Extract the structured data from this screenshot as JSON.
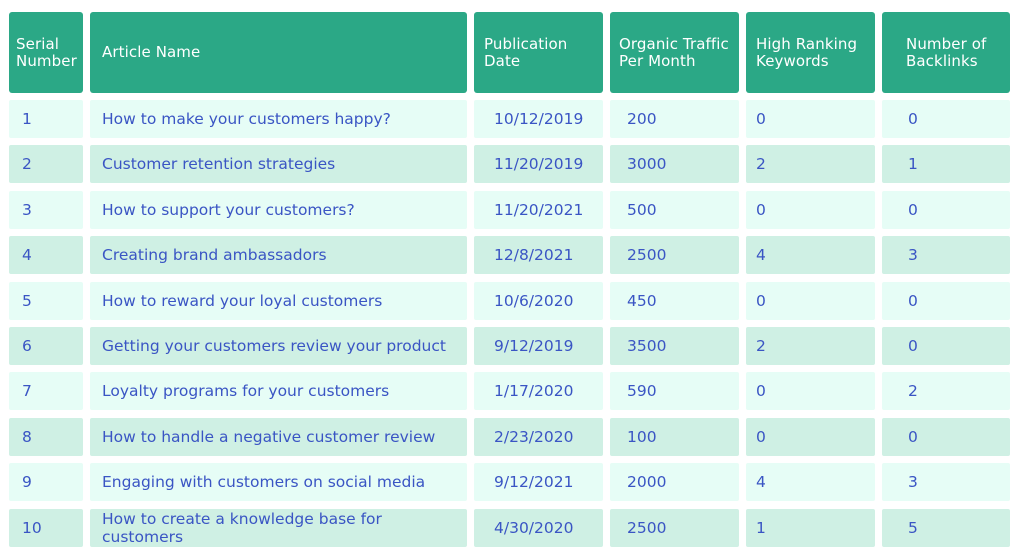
{
  "table": {
    "headers": [
      [
        "Serial",
        "Number"
      ],
      [
        "Article Name"
      ],
      [
        "Publication",
        "Date"
      ],
      [
        "Organic Traffic",
        "Per Month"
      ],
      [
        "High Ranking",
        "Keywords"
      ],
      [
        "Number of",
        "Backlinks"
      ]
    ],
    "rows": [
      [
        "1",
        "How to make your customers happy?",
        "10/12/2019",
        "200",
        "0",
        "0"
      ],
      [
        "2",
        "Customer retention strategies",
        "11/20/2019",
        "3000",
        "2",
        "1"
      ],
      [
        "3",
        "How to support your customers?",
        "11/20/2021",
        "500",
        "0",
        "0"
      ],
      [
        "4",
        "Creating brand ambassadors",
        "12/8/2021",
        "2500",
        "4",
        "3"
      ],
      [
        "5",
        "How to reward your loyal customers",
        "10/6/2020",
        "450",
        "0",
        "0"
      ],
      [
        "6",
        "Getting your customers review your product",
        "9/12/2019",
        "3500",
        "2",
        "0"
      ],
      [
        "7",
        "Loyalty programs for your customers",
        "1/17/2020",
        "590",
        "0",
        "2"
      ],
      [
        "8",
        "How to handle a negative customer review",
        "2/23/2020",
        "100",
        "0",
        "0"
      ],
      [
        "9",
        "Engaging with customers on social media",
        "9/12/2021",
        "2000",
        "4",
        "3"
      ],
      [
        "10",
        "How to create a knowledge base for customers",
        "4/30/2020",
        "2500",
        "1",
        "5"
      ]
    ]
  },
  "colors": {
    "header_bg": "#2ba886",
    "header_text": "#ffffff",
    "row_light": "#e6fdf6",
    "row_dark": "#cff0e4",
    "cell_text": "#3a55c4"
  }
}
